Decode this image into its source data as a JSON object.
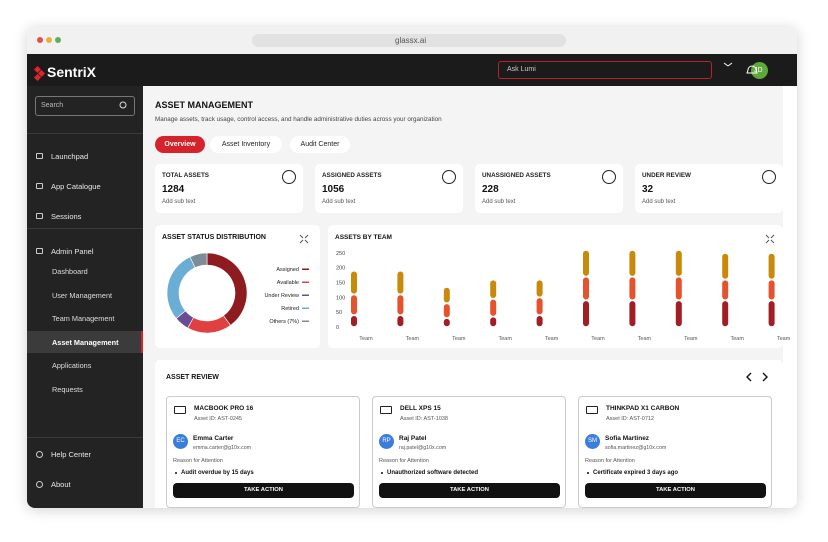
{
  "browser": {
    "url": "glassx.ai"
  },
  "header": {
    "brand": "SentriX",
    "ask": "Ask Lumi",
    "avatar": "JD"
  },
  "sidebar": {
    "search": "Search",
    "items": [
      "Launchpad",
      "App Catalogue",
      "Sessions",
      "Admin Panel"
    ],
    "admin_items": [
      "Dashboard",
      "User Management",
      "Team Management",
      "Asset Management",
      "Applications",
      "Requests"
    ],
    "footer": [
      "Help Center",
      "About"
    ]
  },
  "page": {
    "title": "ASSET MANAGEMENT",
    "subtitle": "Manage assets, track usage, control access, and handle administrative duties across your organization",
    "tabs": [
      "Overview",
      "Asset Inventory",
      "Audit Center"
    ]
  },
  "stats": [
    {
      "label": "TOTAL ASSETS",
      "value": 1284,
      "sub": "Add sub text"
    },
    {
      "label": "ASSIGNED ASSETS",
      "value": 1056,
      "sub": "Add sub text"
    },
    {
      "label": "UNASSIGNED ASSETS",
      "value": 228,
      "sub": "Add sub text"
    },
    {
      "label": "UNDER REVIEW",
      "value": 32,
      "sub": "Add sub text"
    }
  ],
  "chart_data": [
    {
      "type": "donut",
      "title": "ASSET STATUS DISTRIBUTION",
      "categories": [
        "Assigned",
        "Available",
        "Under Review",
        "Retired",
        "Others (7%)"
      ],
      "values": [
        40,
        18,
        6,
        29,
        7
      ],
      "colors": [
        "#8e1b1f",
        "#e0403f",
        "#6a4c93",
        "#6aaed6",
        "#7d8c99"
      ]
    },
    {
      "type": "bar",
      "title": "ASSETS BY TEAM",
      "categories": [
        "Team",
        "Team",
        "Team",
        "Team",
        "Team",
        "Team",
        "Team",
        "Team",
        "Team",
        "Team"
      ],
      "series": [
        {
          "color": "#a21d24",
          "values": [
            40,
            40,
            30,
            35,
            40,
            90,
            90,
            90,
            90,
            90
          ]
        },
        {
          "color": "#e4532d",
          "values": [
            70,
            70,
            50,
            60,
            60,
            80,
            80,
            80,
            70,
            70
          ]
        },
        {
          "color": "#c98a0c",
          "values": [
            80,
            80,
            55,
            65,
            60,
            90,
            90,
            90,
            90,
            90
          ]
        }
      ],
      "ylim": [
        0,
        270
      ],
      "yticks": [
        0,
        50,
        100,
        150,
        200,
        250
      ],
      "stacked": true
    }
  ],
  "review": {
    "title": "ASSET REVIEW",
    "cards": [
      {
        "device": "MACBOOK PRO 16",
        "asset_id": "Asset ID: AST-0245",
        "initials": "EC",
        "user": "Emma Carter",
        "email": "emma.carter@g10x.com",
        "reason_label": "Reason for Attention",
        "reason": "Audit overdue by 15 days",
        "action": "TAKE ACTION"
      },
      {
        "device": "DELL XPS 15",
        "asset_id": "Asset ID: AST-1038",
        "initials": "RP",
        "user": "Raj Patel",
        "email": "raj.patel@g10x.com",
        "reason_label": "Reason for Attention",
        "reason": "Unauthorized software detected",
        "action": "TAKE ACTION"
      },
      {
        "device": "THINKPAD X1 CARBON",
        "asset_id": "Asset ID: AST-0712",
        "initials": "SM",
        "user": "Sofia Martinez",
        "email": "sofia.martinez@g10x.com",
        "reason_label": "Reason for Attention",
        "reason": "Certificate expired 3 days ago",
        "action": "TAKE ACTION"
      }
    ]
  }
}
